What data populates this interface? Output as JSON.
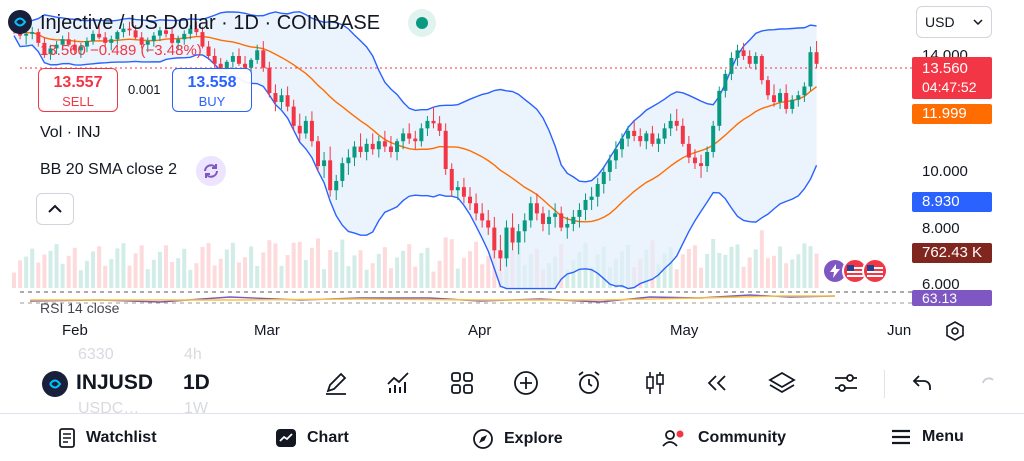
{
  "header": {
    "title": "Injective / US Dollar · 1D · COINBASE",
    "price_line": "13.560 −0.489 (−3.48%)"
  },
  "trade": {
    "sell_price": "13.557",
    "sell_label": "SELL",
    "spread": "0.001",
    "buy_price": "13.558",
    "buy_label": "BUY"
  },
  "indicators": {
    "volume_label": "Vol · INJ",
    "bb_label": "BB 20 SMA close 2",
    "rsi_label": "RSI 14 close"
  },
  "currency": {
    "value": "USD"
  },
  "price_axis": {
    "ticks": [
      "14.000",
      "10.000",
      "8.000",
      "6.000"
    ],
    "last_price": "13.560",
    "countdown": "04:47:52",
    "bb_basis_value": "11.999",
    "bb_lower_value": "8.930",
    "volume_value": "762.43 K",
    "rsi_value": "63.13"
  },
  "time_axis": {
    "labels": [
      "Feb",
      "Mar",
      "Apr",
      "May",
      "Jun"
    ]
  },
  "toolbar": {
    "symbol": "INJUSD",
    "interval": "1D",
    "ghost_top_left": "6330",
    "ghost_top_right": "4h",
    "ghost_bottom_left": "USDC…",
    "ghost_bottom_right": "1W"
  },
  "nav": {
    "watchlist": "Watchlist",
    "chart": "Chart",
    "explore": "Explore",
    "community": "Community",
    "menu": "Menu"
  },
  "colors": {
    "up": "#089981",
    "down": "#f23645",
    "bb_band": "#2962ff",
    "bb_basis": "#ff6d00",
    "bb_fill": "#e3eefb",
    "rsi": "#7e57c2"
  },
  "chart_data": {
    "type": "candlestick",
    "x_range": [
      "2024-01-14",
      "2024-06-03"
    ],
    "ylim": [
      5.5,
      16
    ],
    "candles": [
      [
        15.6,
        15.9,
        15.2,
        15.5
      ],
      [
        15.5,
        15.7,
        14.9,
        15.1
      ],
      [
        15.1,
        15.4,
        14.6,
        15.2
      ],
      [
        15.2,
        15.6,
        14.9,
        15.3
      ],
      [
        15.3,
        15.5,
        14.5,
        14.7
      ],
      [
        14.7,
        15.0,
        13.9,
        14.1
      ],
      [
        14.1,
        14.6,
        13.8,
        14.4
      ],
      [
        14.4,
        14.8,
        14.1,
        14.6
      ],
      [
        14.6,
        15.1,
        14.3,
        14.9
      ],
      [
        14.9,
        15.3,
        14.5,
        14.6
      ],
      [
        14.6,
        14.9,
        14.1,
        14.3
      ],
      [
        14.3,
        14.7,
        13.9,
        14.5
      ],
      [
        14.5,
        15.0,
        14.2,
        14.8
      ],
      [
        14.8,
        15.4,
        14.6,
        15.2
      ],
      [
        15.2,
        15.7,
        14.9,
        15.0
      ],
      [
        15.0,
        15.3,
        14.5,
        14.7
      ],
      [
        14.7,
        15.1,
        14.3,
        14.9
      ],
      [
        14.9,
        15.4,
        14.6,
        15.3
      ],
      [
        15.3,
        15.8,
        15.0,
        15.5
      ],
      [
        15.5,
        15.9,
        15.1,
        15.4
      ],
      [
        15.4,
        15.7,
        14.9,
        15.0
      ],
      [
        15.0,
        15.3,
        14.4,
        14.6
      ],
      [
        14.6,
        15.0,
        14.2,
        14.8
      ],
      [
        14.8,
        15.3,
        14.5,
        15.1
      ],
      [
        15.1,
        15.6,
        14.8,
        15.4
      ],
      [
        15.4,
        15.8,
        15.0,
        15.2
      ],
      [
        15.2,
        15.5,
        14.6,
        14.7
      ],
      [
        14.7,
        15.1,
        14.3,
        14.9
      ],
      [
        14.9,
        15.4,
        14.6,
        15.2
      ],
      [
        15.2,
        15.7,
        14.9,
        15.5
      ],
      [
        15.5,
        15.9,
        15.1,
        15.3
      ],
      [
        15.3,
        15.6,
        14.4,
        14.5
      ],
      [
        14.5,
        14.8,
        13.8,
        14.0
      ],
      [
        14.0,
        14.4,
        13.4,
        13.6
      ],
      [
        13.6,
        13.9,
        13.1,
        13.3
      ],
      [
        13.3,
        13.8,
        13.0,
        13.7
      ],
      [
        13.7,
        14.2,
        13.4,
        14.0
      ],
      [
        14.0,
        14.4,
        13.5,
        13.6
      ],
      [
        13.6,
        14.0,
        13.1,
        13.4
      ],
      [
        13.4,
        13.9,
        13.0,
        13.8
      ],
      [
        13.8,
        14.6,
        13.6,
        14.3
      ],
      [
        14.3,
        14.8,
        13.2,
        13.4
      ],
      [
        13.4,
        13.7,
        12.0,
        12.2
      ],
      [
        12.2,
        12.6,
        11.4,
        11.8
      ],
      [
        11.8,
        12.4,
        11.5,
        12.1
      ],
      [
        12.1,
        12.5,
        11.4,
        11.6
      ],
      [
        11.6,
        11.9,
        10.6,
        10.8
      ],
      [
        10.8,
        11.3,
        10.2,
        10.5
      ],
      [
        10.5,
        11.2,
        10.3,
        11.0
      ],
      [
        11.0,
        11.4,
        10.0,
        10.2
      ],
      [
        10.2,
        10.4,
        9.1,
        9.3
      ],
      [
        9.3,
        9.8,
        8.9,
        9.5
      ],
      [
        9.5,
        10.0,
        8.3,
        8.5
      ],
      [
        8.5,
        9.0,
        8.2,
        8.8
      ],
      [
        8.8,
        9.6,
        8.6,
        9.4
      ],
      [
        9.4,
        9.9,
        9.0,
        9.6
      ],
      [
        9.6,
        10.2,
        9.3,
        10.0
      ],
      [
        10.0,
        10.5,
        9.6,
        9.8
      ],
      [
        9.8,
        10.3,
        9.5,
        10.1
      ],
      [
        10.1,
        10.5,
        9.7,
        9.9
      ],
      [
        9.9,
        10.4,
        9.6,
        10.2
      ],
      [
        10.2,
        10.6,
        9.8,
        10.0
      ],
      [
        10.0,
        10.4,
        9.6,
        9.8
      ],
      [
        9.8,
        10.3,
        9.5,
        10.2
      ],
      [
        10.2,
        10.7,
        9.9,
        10.5
      ],
      [
        10.5,
        10.9,
        10.1,
        10.3
      ],
      [
        10.3,
        10.6,
        9.9,
        10.2
      ],
      [
        10.2,
        10.9,
        10.0,
        10.7
      ],
      [
        10.7,
        11.2,
        10.4,
        11.0
      ],
      [
        11.0,
        11.6,
        10.7,
        10.9
      ],
      [
        10.9,
        11.2,
        10.4,
        10.6
      ],
      [
        10.6,
        10.9,
        9.0,
        9.2
      ],
      [
        9.2,
        9.4,
        8.3,
        8.5
      ],
      [
        8.5,
        8.8,
        8.2,
        8.6
      ],
      [
        8.6,
        8.9,
        8.1,
        8.3
      ],
      [
        8.3,
        8.6,
        7.9,
        8.1
      ],
      [
        8.1,
        8.4,
        7.6,
        7.8
      ],
      [
        7.8,
        8.1,
        7.4,
        7.6
      ],
      [
        7.6,
        7.9,
        7.2,
        7.4
      ],
      [
        7.4,
        7.7,
        6.6,
        6.8
      ],
      [
        6.8,
        7.2,
        6.3,
        6.6
      ],
      [
        6.6,
        7.6,
        6.4,
        7.4
      ],
      [
        7.4,
        7.8,
        6.8,
        7.0
      ],
      [
        7.0,
        7.5,
        6.7,
        7.3
      ],
      [
        7.3,
        7.8,
        7.0,
        7.6
      ],
      [
        7.6,
        8.3,
        7.4,
        8.1
      ],
      [
        8.1,
        8.4,
        7.6,
        7.8
      ],
      [
        7.8,
        8.0,
        7.3,
        7.5
      ],
      [
        7.5,
        7.9,
        7.2,
        7.7
      ],
      [
        7.7,
        8.1,
        7.4,
        7.8
      ],
      [
        7.8,
        8.0,
        7.3,
        7.4
      ],
      [
        7.4,
        7.7,
        7.1,
        7.5
      ],
      [
        7.5,
        7.9,
        7.3,
        7.7
      ],
      [
        7.7,
        8.1,
        7.4,
        7.9
      ],
      [
        7.9,
        8.4,
        7.6,
        8.2
      ],
      [
        8.2,
        8.6,
        7.9,
        8.3
      ],
      [
        8.3,
        8.9,
        8.0,
        8.7
      ],
      [
        8.7,
        9.3,
        8.4,
        9.1
      ],
      [
        9.1,
        9.7,
        8.8,
        9.5
      ],
      [
        9.5,
        10.2,
        9.2,
        9.9
      ],
      [
        9.9,
        10.5,
        9.6,
        10.3
      ],
      [
        10.3,
        10.8,
        10.0,
        10.6
      ],
      [
        10.6,
        11.0,
        10.2,
        10.4
      ],
      [
        10.4,
        10.7,
        10.0,
        10.2
      ],
      [
        10.2,
        10.6,
        9.9,
        10.5
      ],
      [
        10.5,
        10.8,
        10.0,
        10.1
      ],
      [
        10.1,
        10.5,
        9.8,
        10.3
      ],
      [
        10.3,
        10.9,
        10.1,
        10.7
      ],
      [
        10.7,
        11.3,
        10.4,
        11.0
      ],
      [
        11.0,
        11.5,
        10.6,
        10.8
      ],
      [
        10.8,
        11.1,
        10.0,
        10.1
      ],
      [
        10.1,
        10.4,
        9.4,
        9.6
      ],
      [
        9.6,
        9.9,
        9.2,
        9.4
      ],
      [
        9.4,
        9.7,
        8.9,
        9.3
      ],
      [
        9.3,
        10.0,
        9.1,
        9.8
      ],
      [
        9.8,
        11.0,
        9.6,
        10.8
      ],
      [
        10.8,
        12.5,
        10.6,
        12.3
      ],
      [
        12.3,
        13.3,
        12.0,
        13.1
      ],
      [
        13.1,
        14.2,
        12.8,
        13.9
      ],
      [
        13.9,
        14.6,
        13.5,
        14.3
      ],
      [
        14.3,
        14.7,
        13.8,
        14.0
      ],
      [
        14.0,
        14.3,
        13.4,
        13.6
      ],
      [
        13.6,
        14.2,
        13.3,
        14.0
      ],
      [
        14.0,
        14.1,
        12.6,
        12.8
      ],
      [
        12.8,
        13.0,
        11.9,
        12.1
      ],
      [
        12.1,
        12.6,
        11.6,
        11.8
      ],
      [
        11.8,
        12.4,
        11.5,
        12.2
      ],
      [
        12.2,
        12.6,
        11.3,
        11.5
      ],
      [
        11.5,
        12.1,
        11.3,
        11.9
      ],
      [
        11.9,
        12.3,
        11.6,
        12.1
      ],
      [
        12.1,
        12.7,
        11.8,
        12.5
      ],
      [
        12.5,
        14.5,
        12.3,
        14.2
      ],
      [
        14.2,
        14.8,
        13.4,
        13.6
      ]
    ]
  }
}
